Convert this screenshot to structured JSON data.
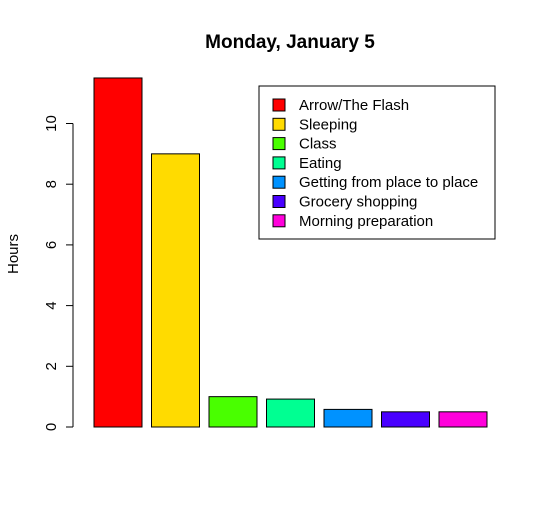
{
  "chart_data": {
    "type": "bar",
    "title": "Monday, January 5",
    "xlabel": "",
    "ylabel": "Hours",
    "ylim": [
      0,
      12
    ],
    "yticks": [
      0,
      2,
      4,
      6,
      8,
      10
    ],
    "grid": false,
    "legend_position": "top-right",
    "categories": [
      "Arrow/The Flash",
      "Sleeping",
      "Class",
      "Eating",
      "Getting from place to place",
      "Grocery shopping",
      "Morning preparation"
    ],
    "values": [
      11.5,
      9.0,
      1.0,
      0.92,
      0.58,
      0.5,
      0.5
    ],
    "colors": [
      "#FF0000",
      "#FFDB00",
      "#49FF00",
      "#00FF92",
      "#0092FF",
      "#4900FF",
      "#FF00DB"
    ]
  }
}
